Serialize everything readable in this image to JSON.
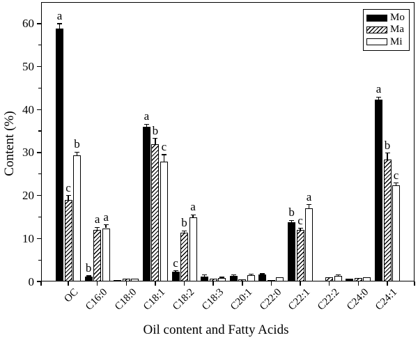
{
  "chart_data": {
    "type": "bar",
    "title": "",
    "xlabel": "Oil content and Fatty Acids",
    "ylabel": "Content (%)",
    "ylim": [
      0,
      65
    ],
    "yticks": [
      0,
      10,
      20,
      30,
      40,
      50,
      60
    ],
    "y_minor_tick_step": 5,
    "grid": false,
    "legend_position": "top-right-inside",
    "categories": [
      "OC",
      "C16:0",
      "C18:0",
      "C18:1",
      "C18:2",
      "C18:3",
      "C20:1",
      "C22:0",
      "C22:1",
      "C22:2",
      "C24:0",
      "C24:1"
    ],
    "series": [
      {
        "name": "Mo",
        "fill": "solid-black",
        "values": [
          58.8,
          1.1,
          0.3,
          36.0,
          2.3,
          1.1,
          1.3,
          1.6,
          13.7,
          0,
          0.6,
          42.3
        ],
        "errors": [
          1.2,
          0.2,
          0.1,
          0.6,
          0.2,
          0.4,
          0.2,
          0.2,
          0.5,
          0,
          0.1,
          0.6
        ],
        "letters": [
          "a",
          "b",
          "",
          "a",
          "c",
          "",
          "",
          "",
          "b",
          "",
          "",
          "a"
        ]
      },
      {
        "name": "Ma",
        "fill": "diagonal-hatch",
        "values": [
          19.0,
          12.0,
          0.6,
          31.9,
          11.4,
          0.7,
          0.5,
          0.4,
          12.0,
          1.0,
          0.8,
          28.3
        ],
        "errors": [
          1.0,
          0.6,
          0.1,
          1.4,
          0.4,
          0.1,
          0.1,
          0.1,
          0.4,
          0.1,
          0.1,
          1.6
        ],
        "letters": [
          "c",
          "a",
          "",
          "b",
          "b",
          "",
          "",
          "",
          "c",
          "",
          "",
          "b"
        ]
      },
      {
        "name": "Mi",
        "fill": "white",
        "values": [
          29.3,
          12.4,
          0.6,
          27.8,
          14.9,
          0.8,
          1.5,
          0.9,
          17.0,
          1.3,
          0.9,
          22.3
        ],
        "errors": [
          0.8,
          0.8,
          0.1,
          1.7,
          0.6,
          0.2,
          0.2,
          0.1,
          0.9,
          0.2,
          0.1,
          0.6
        ],
        "letters": [
          "b",
          "a",
          "",
          "c",
          "a",
          "",
          "",
          "",
          "a",
          "",
          "",
          "c"
        ]
      }
    ]
  },
  "colors": {
    "foreground": "#000000",
    "background": "#ffffff",
    "bar_black": "#000000",
    "bar_white": "#ffffff"
  }
}
